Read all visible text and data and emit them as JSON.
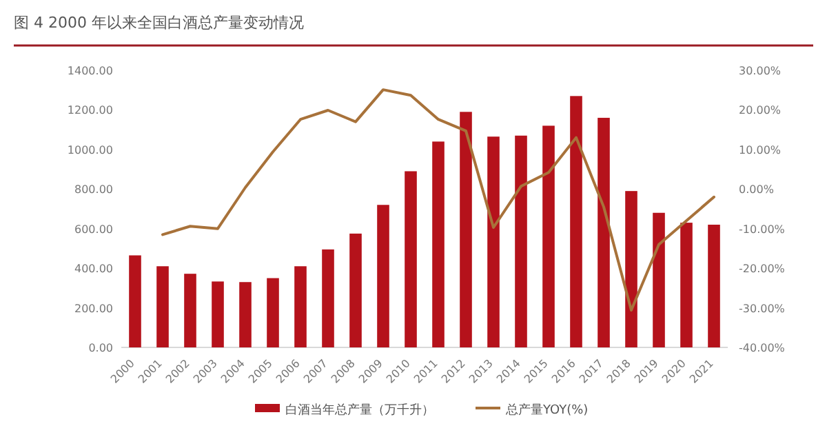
{
  "chart_data": {
    "type": "bar",
    "title": "图 4 2000 年以来全国白酒总产量变动情况",
    "categories": [
      "2000",
      "2001",
      "2002",
      "2003",
      "2004",
      "2005",
      "2006",
      "2007",
      "2008",
      "2009",
      "2010",
      "2011",
      "2012",
      "2013",
      "2014",
      "2015",
      "2016",
      "2017",
      "2018",
      "2019",
      "2020",
      "2021"
    ],
    "series": [
      {
        "name": "白酒当年总产量（万千升）",
        "color": "#b5121b",
        "values": [
          465,
          410,
          372,
          333,
          330,
          350,
          410,
          495,
          575,
          720,
          890,
          1040,
          1190,
          1065,
          1070,
          1120,
          1270,
          1160,
          790,
          680,
          630,
          620
        ]
      },
      {
        "name": "总产量YOY(%)",
        "type": "line",
        "axis": "y2",
        "color": "#a8723a",
        "values": [
          null,
          -11.5,
          -9.4,
          -10,
          0.4,
          9.4,
          17.6,
          19.9,
          17,
          25.1,
          23.7,
          17.6,
          14.7,
          -9.7,
          0.7,
          4.2,
          13,
          -4.5,
          -30.6,
          -14,
          -8,
          -2
        ]
      }
    ],
    "ylim": [
      0,
      1400
    ],
    "yticks": [
      {
        "value": 0,
        "label": "0.00"
      },
      {
        "value": 200,
        "label": "200.00"
      },
      {
        "value": 400,
        "label": "400.00"
      },
      {
        "value": 600,
        "label": "600.00"
      },
      {
        "value": 800,
        "label": "800.00"
      },
      {
        "value": 1000,
        "label": "1000.00"
      },
      {
        "value": 1200,
        "label": "1200.00"
      },
      {
        "value": 1400,
        "label": "1400.00"
      }
    ],
    "y2lim": [
      -40,
      30
    ],
    "y2ticks": [
      {
        "value": -40,
        "label": "-40.00%"
      },
      {
        "value": -30,
        "label": "-30.00%"
      },
      {
        "value": -20,
        "label": "-20.00%"
      },
      {
        "value": -10,
        "label": "-10.00%"
      },
      {
        "value": 0,
        "label": "0.00%"
      },
      {
        "value": 10,
        "label": "10.00%"
      },
      {
        "value": 20,
        "label": "20.00%"
      },
      {
        "value": 30,
        "label": "30.00%"
      }
    ],
    "legend": "bottom",
    "grid": false
  }
}
